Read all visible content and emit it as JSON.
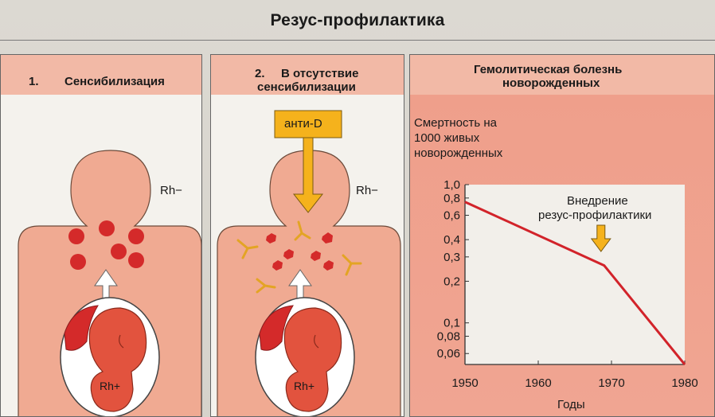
{
  "title": "Резус-профилактика",
  "panel1": {
    "number": "1.",
    "heading": "Сенсибилизация",
    "mother_label": "Rh−",
    "fetus_label": "Rh+"
  },
  "panel2": {
    "number": "2.",
    "heading_line1": "В отсутствие",
    "heading_line2": "сенсибилизации",
    "antibody_label": "анти-D",
    "mother_label": "Rh−",
    "fetus_label": "Rh+"
  },
  "panel3": {
    "heading_line1": "Гемолитическая болезнь",
    "heading_line2": "новорожденных",
    "ylabel_line1": "Смертность на",
    "ylabel_line2": "1000 живых",
    "ylabel_line3": "новорожденных",
    "xlabel": "Годы",
    "annotation_line1": "Внедрение",
    "annotation_line2": "резус-профилактики"
  },
  "colors": {
    "header_pink": "#f2b9a6",
    "body_salmon": "#f0aa92",
    "red_cell": "#d42a2a",
    "arrow_yellow": "#f5b21c",
    "line_red": "#d2232a"
  },
  "chart_data": {
    "type": "line",
    "x": [
      1950,
      1969,
      1980
    ],
    "y": [
      0.75,
      0.26,
      0.05
    ],
    "xticks": [
      "1950",
      "1960",
      "1970",
      "1980"
    ],
    "yticks": [
      "1,0",
      "0,8",
      "0,6",
      "0,4",
      "0,3",
      "0,2",
      "0,1",
      "0,08",
      "0,06"
    ],
    "ytick_values": [
      1.0,
      0.8,
      0.6,
      0.4,
      0.3,
      0.2,
      0.1,
      0.08,
      0.06
    ],
    "xlim": [
      1950,
      1980
    ],
    "ylim": [
      0.05,
      1.0
    ],
    "yscale": "log",
    "annotation_x": 1969
  }
}
